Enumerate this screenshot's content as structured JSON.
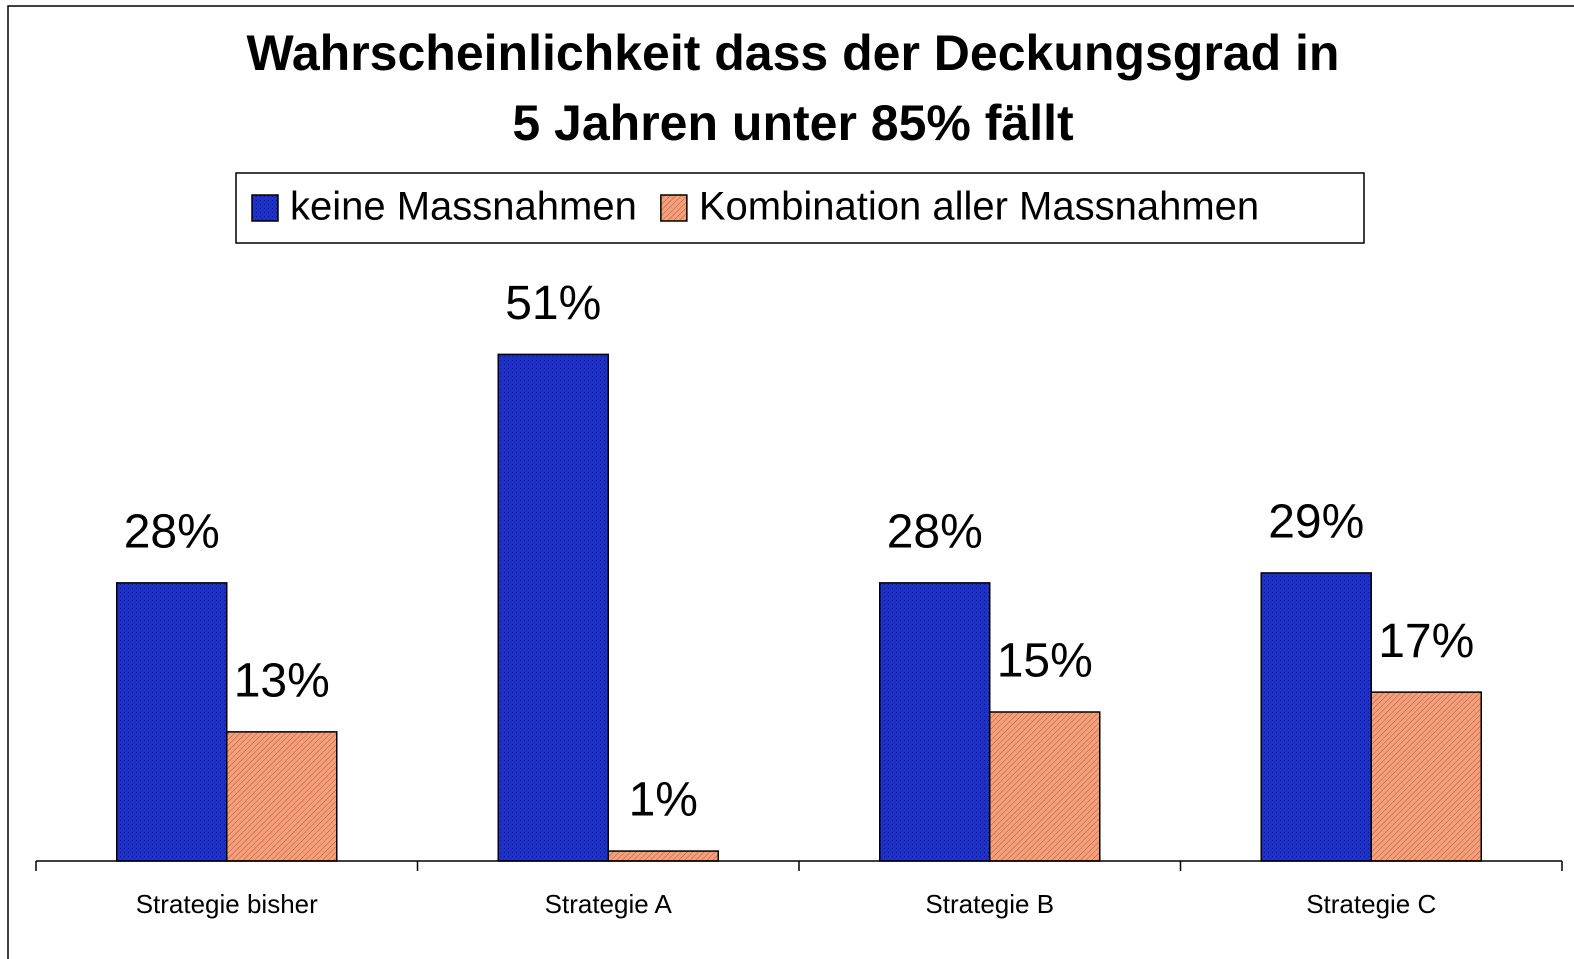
{
  "chart_data": {
    "type": "bar",
    "title": [
      "Wahrscheinlichkeit dass der Deckungsgrad in",
      "5 Jahren unter 85% fällt"
    ],
    "categories": [
      "Strategie bisher",
      "Strategie A",
      "Strategie B",
      "Strategie C"
    ],
    "series": [
      {
        "name": "keine Massnahmen",
        "color": "#1f30c4",
        "values": [
          28,
          51,
          28,
          29
        ],
        "value_labels": [
          "28%",
          "51%",
          "28%",
          "29%"
        ]
      },
      {
        "name": "Kombination aller Massnahmen",
        "color": "#f4a07c",
        "values": [
          13,
          1,
          15,
          17
        ],
        "value_labels": [
          "13%",
          "1%",
          "15%",
          "17%"
        ]
      }
    ],
    "ylim": [
      0,
      60
    ],
    "legend": "top"
  }
}
